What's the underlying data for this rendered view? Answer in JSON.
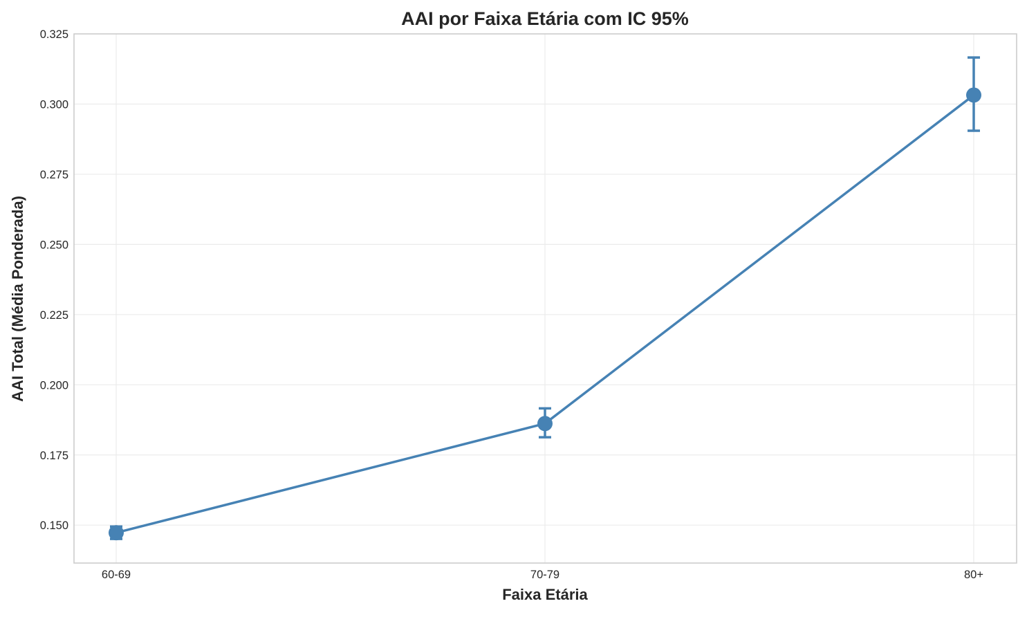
{
  "chart_data": {
    "type": "line",
    "title": "AAI por Faixa Etária com IC 95%",
    "xlabel": "Faixa Etária",
    "ylabel": "AAI Total (Média Ponderada)",
    "categories": [
      "60-69",
      "70-79",
      "80+"
    ],
    "series": [
      {
        "values": [
          0.1473,
          0.1862,
          0.3032
        ],
        "ci_lower": [
          0.1451,
          0.1813,
          0.2905
        ],
        "ci_upper": [
          0.1495,
          0.1916,
          0.3166
        ],
        "color": "#4682b4"
      }
    ],
    "ylim": [
      0.1365,
      0.325
    ],
    "yticks": [
      0.15,
      0.175,
      0.2,
      0.225,
      0.25,
      0.275,
      0.3,
      0.325
    ],
    "ytick_labels": [
      "0.150",
      "0.175",
      "0.200",
      "0.225",
      "0.250",
      "0.275",
      "0.300",
      "0.325"
    ],
    "grid": true,
    "legend": "none",
    "colors": {
      "line": "#4682b4",
      "grid": "#ebebeb",
      "frame": "#cccccc",
      "text": "#262626"
    }
  }
}
